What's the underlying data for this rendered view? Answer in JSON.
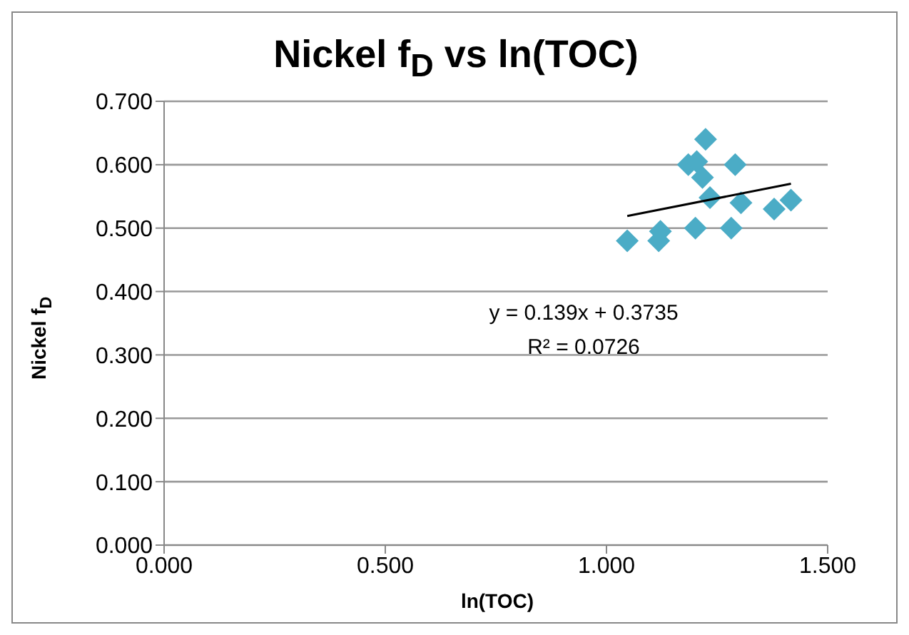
{
  "chart_data": {
    "type": "scatter",
    "title": "Nickel f$_{D}$ vs ln(TOC)",
    "xlabel": "ln(TOC)",
    "ylabel": "Nickel f$_{D}$",
    "xlim": [
      0,
      1.5
    ],
    "xticks": [
      {
        "value": 0,
        "label": "0.000"
      },
      {
        "value": 0.5,
        "label": "0.500"
      },
      {
        "value": 1,
        "label": "1.000"
      },
      {
        "value": 1.5,
        "label": "1.500"
      }
    ],
    "ylim": [
      0,
      0.7
    ],
    "yticks": [
      {
        "value": 0,
        "label": "0.000"
      },
      {
        "value": 0.1,
        "label": "0.100"
      },
      {
        "value": 0.2,
        "label": "0.200"
      },
      {
        "value": 0.3,
        "label": "0.300"
      },
      {
        "value": 0.4,
        "label": "0.400"
      },
      {
        "value": 0.5,
        "label": "0.500"
      },
      {
        "value": 0.6,
        "label": "0.600"
      },
      {
        "value": 0.7,
        "label": "0.700"
      }
    ],
    "grid": "y",
    "marker": "diamond",
    "series": [
      {
        "color": "#4bacc6",
        "x": [
          1.047,
          1.118,
          1.122,
          1.201,
          1.282,
          1.185,
          1.204,
          1.217,
          1.224,
          1.291,
          1.234,
          1.304,
          1.379,
          1.417
        ],
        "values": [
          0.48,
          0.48,
          0.495,
          0.5,
          0.5,
          0.6,
          0.605,
          0.58,
          0.64,
          0.6,
          0.548,
          0.54,
          0.53,
          0.544
        ]
      },
      {
        "type": "line",
        "color": "#000000",
        "marker": "none",
        "x": [
          1.047,
          1.417
        ],
        "values": [
          0.519,
          0.57
        ]
      }
    ],
    "annotations": [
      "y = 0.139x + 0.3735",
      "R² = 0.0726"
    ]
  }
}
